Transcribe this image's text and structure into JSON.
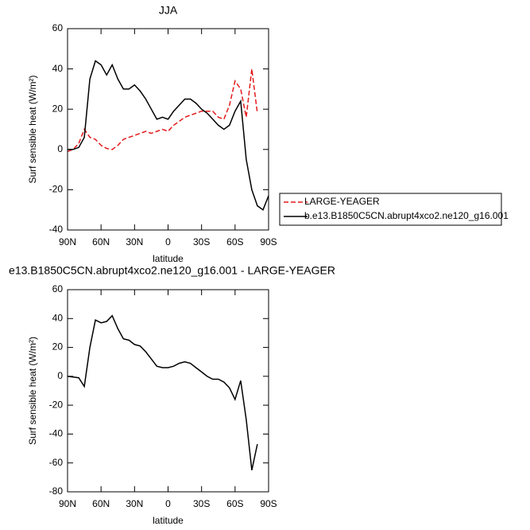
{
  "chart_data": [
    {
      "type": "line",
      "title": "JJA",
      "xlabel": "latitude",
      "ylabel": "Surf sensible heat (W/m²)",
      "x": [
        90,
        85,
        80,
        75,
        70,
        65,
        60,
        55,
        50,
        45,
        40,
        35,
        30,
        25,
        20,
        15,
        10,
        5,
        0,
        -5,
        -10,
        -15,
        -20,
        -25,
        -30,
        -35,
        -40,
        -45,
        -50,
        -55,
        -60,
        -65,
        -70,
        -75,
        -80,
        -85,
        -90
      ],
      "series": [
        {
          "name": "LARGE-YEAGER",
          "color": "#e31a1c",
          "linestyle": "dashed",
          "values": [
            -1,
            0,
            3,
            10,
            6,
            5,
            2,
            0.5,
            0,
            2,
            5,
            6,
            7,
            8,
            9,
            8,
            9,
            10,
            9,
            12,
            14,
            16,
            17,
            18,
            19,
            19,
            19,
            16,
            15,
            22,
            34,
            30,
            16,
            40,
            18,
            null,
            null
          ]
        },
        {
          "name": "b.e13.B1850C5CN.abrupt4xco2.ne120_g16.001",
          "color": "#000000",
          "linestyle": "solid",
          "values": [
            0,
            0,
            1,
            6,
            35,
            44,
            42,
            37,
            42,
            35,
            30,
            30,
            32,
            29,
            25,
            20,
            15,
            16,
            15,
            19,
            22,
            25,
            25,
            23,
            20,
            18,
            15,
            12,
            10,
            12,
            19,
            24,
            -5,
            -20,
            -28,
            -30,
            -23
          ]
        }
      ],
      "xlim": [
        90,
        -90
      ],
      "xticks": [
        {
          "value": 90,
          "label": "90N"
        },
        {
          "value": 60,
          "label": "60N"
        },
        {
          "value": 30,
          "label": "30N"
        },
        0,
        {
          "value": -30,
          "label": "30S"
        },
        {
          "value": -60,
          "label": "60S"
        },
        {
          "value": -90,
          "label": "90S"
        }
      ],
      "ylim": [
        -40,
        60
      ],
      "yticks": [
        -40,
        -20,
        0,
        20,
        40,
        60
      ]
    },
    {
      "type": "line",
      "title": "e13.B1850C5CN.abrupt4xco2.ne120_g16.001 - LARGE-YEAGER",
      "xlabel": "latitude",
      "ylabel": "Surf sensible heat (W/m²)",
      "x": [
        90,
        85,
        80,
        75,
        70,
        65,
        60,
        55,
        50,
        45,
        40,
        35,
        30,
        25,
        20,
        15,
        10,
        5,
        0,
        -5,
        -10,
        -15,
        -20,
        -25,
        -30,
        -35,
        -40,
        -45,
        -50,
        -55,
        -60,
        -65,
        -70,
        -75,
        -80,
        -85,
        -90
      ],
      "color": "#000000",
      "linestyle": "solid",
      "values": [
        0,
        -0.5,
        -1,
        -7,
        20,
        39,
        37,
        38,
        42,
        33,
        26,
        25,
        22,
        21,
        17,
        12,
        7,
        6,
        6,
        7,
        9,
        10,
        9,
        6,
        3,
        0,
        -2,
        -2,
        -4,
        -8,
        -16,
        -3,
        -30,
        -65,
        -47,
        null,
        null
      ],
      "xlim": [
        90,
        -90
      ],
      "xticks": [
        {
          "value": 90,
          "label": "90N"
        },
        {
          "value": 60,
          "label": "60N"
        },
        {
          "value": 30,
          "label": "30N"
        },
        0,
        {
          "value": -30,
          "label": "30S"
        },
        {
          "value": -60,
          "label": "60S"
        },
        {
          "value": -90,
          "label": "90S"
        }
      ],
      "ylim": [
        -80,
        60
      ],
      "yticks": [
        -80,
        -60,
        -40,
        -20,
        0,
        20,
        40,
        60
      ]
    }
  ]
}
